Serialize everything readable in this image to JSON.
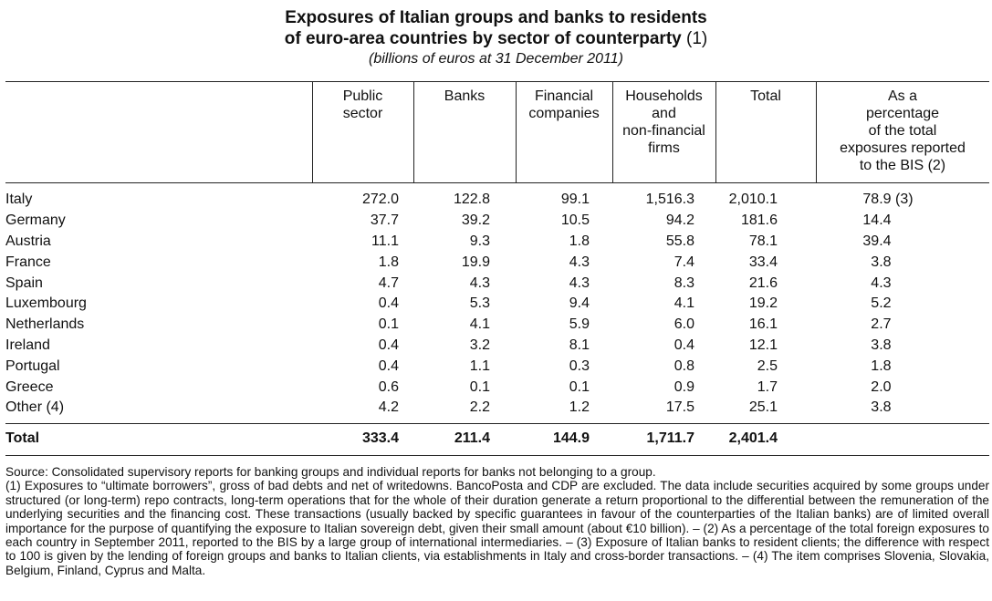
{
  "title": {
    "line1": "Exposures of Italian groups and banks to residents",
    "line2": "of euro-area countries by sector of counterparty",
    "note": "(1)",
    "subtitle": "(billions of euros at 31 December 2011)"
  },
  "columns": {
    "public_sector": [
      "Public",
      "sector"
    ],
    "banks": [
      "Banks"
    ],
    "financial": [
      "Financial",
      "companies"
    ],
    "households": [
      "Households",
      "and",
      "non-financial",
      "firms"
    ],
    "total": [
      "Total"
    ],
    "percentage": [
      "As a",
      "percentage",
      "of the total",
      "exposures reported",
      "to the BIS (2)"
    ]
  },
  "rows": [
    {
      "country": "Italy",
      "public": "272.0",
      "banks": "122.8",
      "financial": "99.1",
      "households": "1,516.3",
      "total": "2,010.1",
      "pct": "78.9",
      "pct_note": "(3)"
    },
    {
      "country": "Germany",
      "public": "37.7",
      "banks": "39.2",
      "financial": "10.5",
      "households": "94.2",
      "total": "181.6",
      "pct": "14.4",
      "pct_note": ""
    },
    {
      "country": "Austria",
      "public": "11.1",
      "banks": "9.3",
      "financial": "1.8",
      "households": "55.8",
      "total": "78.1",
      "pct": "39.4",
      "pct_note": ""
    },
    {
      "country": "France",
      "public": "1.8",
      "banks": "19.9",
      "financial": "4.3",
      "households": "7.4",
      "total": "33.4",
      "pct": "3.8",
      "pct_note": ""
    },
    {
      "country": "Spain",
      "public": "4.7",
      "banks": "4.3",
      "financial": "4.3",
      "households": "8.3",
      "total": "21.6",
      "pct": "4.3",
      "pct_note": ""
    },
    {
      "country": "Luxembourg",
      "public": "0.4",
      "banks": "5.3",
      "financial": "9.4",
      "households": "4.1",
      "total": "19.2",
      "pct": "5.2",
      "pct_note": ""
    },
    {
      "country": "Netherlands",
      "public": "0.1",
      "banks": "4.1",
      "financial": "5.9",
      "households": "6.0",
      "total": "16.1",
      "pct": "2.7",
      "pct_note": ""
    },
    {
      "country": "Ireland",
      "public": "0.4",
      "banks": "3.2",
      "financial": "8.1",
      "households": "0.4",
      "total": "12.1",
      "pct": "3.8",
      "pct_note": ""
    },
    {
      "country": "Portugal",
      "public": "0.4",
      "banks": "1.1",
      "financial": "0.3",
      "households": "0.8",
      "total": "2.5",
      "pct": "1.8",
      "pct_note": ""
    },
    {
      "country": "Greece",
      "public": "0.6",
      "banks": "0.1",
      "financial": "0.1",
      "households": "0.9",
      "total": "1.7",
      "pct": "2.0",
      "pct_note": ""
    },
    {
      "country": "Other (4)",
      "public": "4.2",
      "banks": "2.2",
      "financial": "1.2",
      "households": "17.5",
      "total": "25.1",
      "pct": "3.8",
      "pct_note": ""
    }
  ],
  "total": {
    "label": "Total",
    "public": "333.4",
    "banks": "211.4",
    "financial": "144.9",
    "households": "1,711.7",
    "total": "2,401.4",
    "pct": ""
  },
  "footnotes": {
    "source": "Source: Consolidated supervisory reports for banking groups and individual reports for banks not belonging to a group.",
    "notes": "(1) Exposures to “ultimate borrowers”, gross of bad debts and net of writedowns. BancoPosta and CDP are excluded. The data include securities acquired by some groups under structured (or long-term) repo contracts, long-term operations that for the whole of their duration generate a return proportional to the differential between the remuneration of the underlying securities and the financing cost. These transactions (usually backed by specific guarantees in favour of the counterparties of the Italian banks) are of limited overall importance for the purpose of quantifying the exposure to Italian sovereign debt, given their small amount (about €10 billion). – (2) As a percentage of the total foreign exposures to each country in September 2011, reported to the BIS by a large group of international intermediaries. – (3) Exposure of Italian banks to resident clients; the difference with respect to 100 is given by the lending of foreign groups and banks to Italian clients, via establishments in Italy and cross-border transactions. – (4) The item comprises Slovenia, Slovakia, Belgium, Finland, Cyprus and Malta."
  }
}
